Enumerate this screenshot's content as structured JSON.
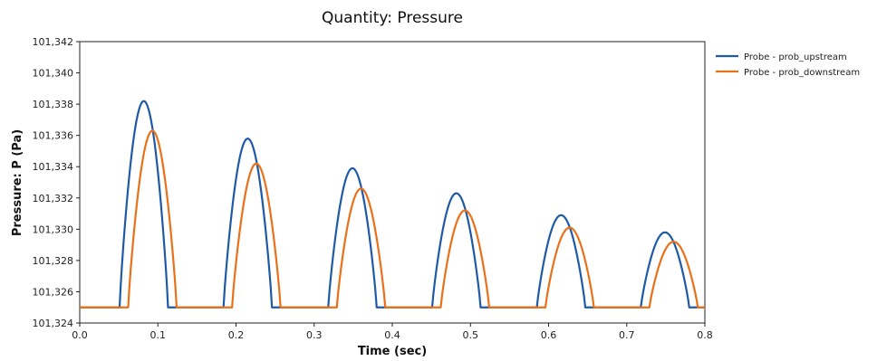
{
  "chart_data": {
    "type": "line",
    "title": "Quantity: Pressure",
    "xlabel": "Time (sec)",
    "ylabel": "Pressure: P (Pa)",
    "xlim": [
      0.0,
      0.8
    ],
    "ylim": [
      101324,
      101342
    ],
    "x_ticks": [
      "0.0",
      "0.1",
      "0.2",
      "0.3",
      "0.4",
      "0.5",
      "0.6",
      "0.7",
      "0.8"
    ],
    "y_ticks": [
      "101,324",
      "101,326",
      "101,328",
      "101,330",
      "101,332",
      "101,334",
      "101,336",
      "101,338",
      "101,340",
      "101,342"
    ],
    "grid": false,
    "legend_position": "outside-top-right",
    "series": [
      {
        "name": "Probe - prob_upstream",
        "color": "#1f5aa6",
        "baseline": 101325,
        "pulses": [
          {
            "start": 0.051,
            "end": 0.113,
            "peak": 101338.2
          },
          {
            "start": 0.184,
            "end": 0.246,
            "peak": 101335.8
          },
          {
            "start": 0.318,
            "end": 0.38,
            "peak": 101333.9
          },
          {
            "start": 0.451,
            "end": 0.513,
            "peak": 101332.3
          },
          {
            "start": 0.585,
            "end": 0.647,
            "peak": 101330.9
          },
          {
            "start": 0.718,
            "end": 0.78,
            "peak": 101329.8
          }
        ]
      },
      {
        "name": "Probe - prob_downstream",
        "color": "#e8711a",
        "baseline": 101325,
        "pulses": [
          {
            "start": 0.062,
            "end": 0.124,
            "peak": 101336.3
          },
          {
            "start": 0.195,
            "end": 0.257,
            "peak": 101334.2
          },
          {
            "start": 0.329,
            "end": 0.391,
            "peak": 101332.6
          },
          {
            "start": 0.462,
            "end": 0.524,
            "peak": 101331.2
          },
          {
            "start": 0.596,
            "end": 0.658,
            "peak": 101330.1
          },
          {
            "start": 0.729,
            "end": 0.791,
            "peak": 101329.2
          }
        ]
      }
    ]
  }
}
